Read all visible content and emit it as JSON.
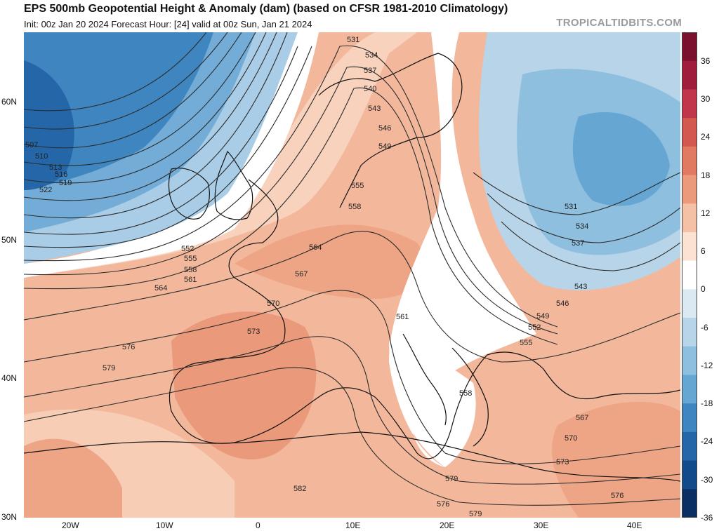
{
  "header": {
    "title": "EPS 500mb Geopotential Height & Anomaly (dam) (based on CFSR 1981-2010 Climatology)",
    "subtitle": "Init: 00z Jan 20 2024   Forecast Hour: [24]   valid at 00z Sun, Jan 21 2024",
    "credit": "TROPICALTIDBITS.COM"
  },
  "axes": {
    "lat_labels": [
      "60N",
      "50N",
      "40N",
      "30N"
    ],
    "lon_labels": [
      "20W",
      "10W",
      "0",
      "10E",
      "20E",
      "30E",
      "40E"
    ]
  },
  "colorbar": {
    "labels": [
      "36",
      "30",
      "24",
      "18",
      "12",
      "6",
      "0",
      "-6",
      "-12",
      "-18",
      "-24",
      "-30",
      "-36"
    ],
    "colors_top_to_bottom": [
      "#7a0f2e",
      "#a01c3c",
      "#c0364a",
      "#d3584f",
      "#e07a60",
      "#eb9a7c",
      "#f4c0a6",
      "#fbe3d3",
      "#ffffff",
      "#dbe9f2",
      "#b7d4e8",
      "#8fbfdf",
      "#66a6d3",
      "#3f86c1",
      "#2466a8",
      "#134a89",
      "#0b2f63"
    ]
  },
  "contours": {
    "labels": [
      "531",
      "534",
      "537",
      "540",
      "543",
      "546",
      "549",
      "555",
      "558",
      "564",
      "567",
      "570",
      "573",
      "576",
      "579",
      "582",
      "507",
      "510",
      "513",
      "516",
      "519",
      "522",
      "552",
      "555",
      "558",
      "561",
      "564",
      "561",
      "558",
      "531",
      "534",
      "537",
      "543",
      "546",
      "549",
      "552",
      "555",
      "567",
      "570",
      "573",
      "576",
      "579",
      "576",
      "579"
    ]
  }
}
